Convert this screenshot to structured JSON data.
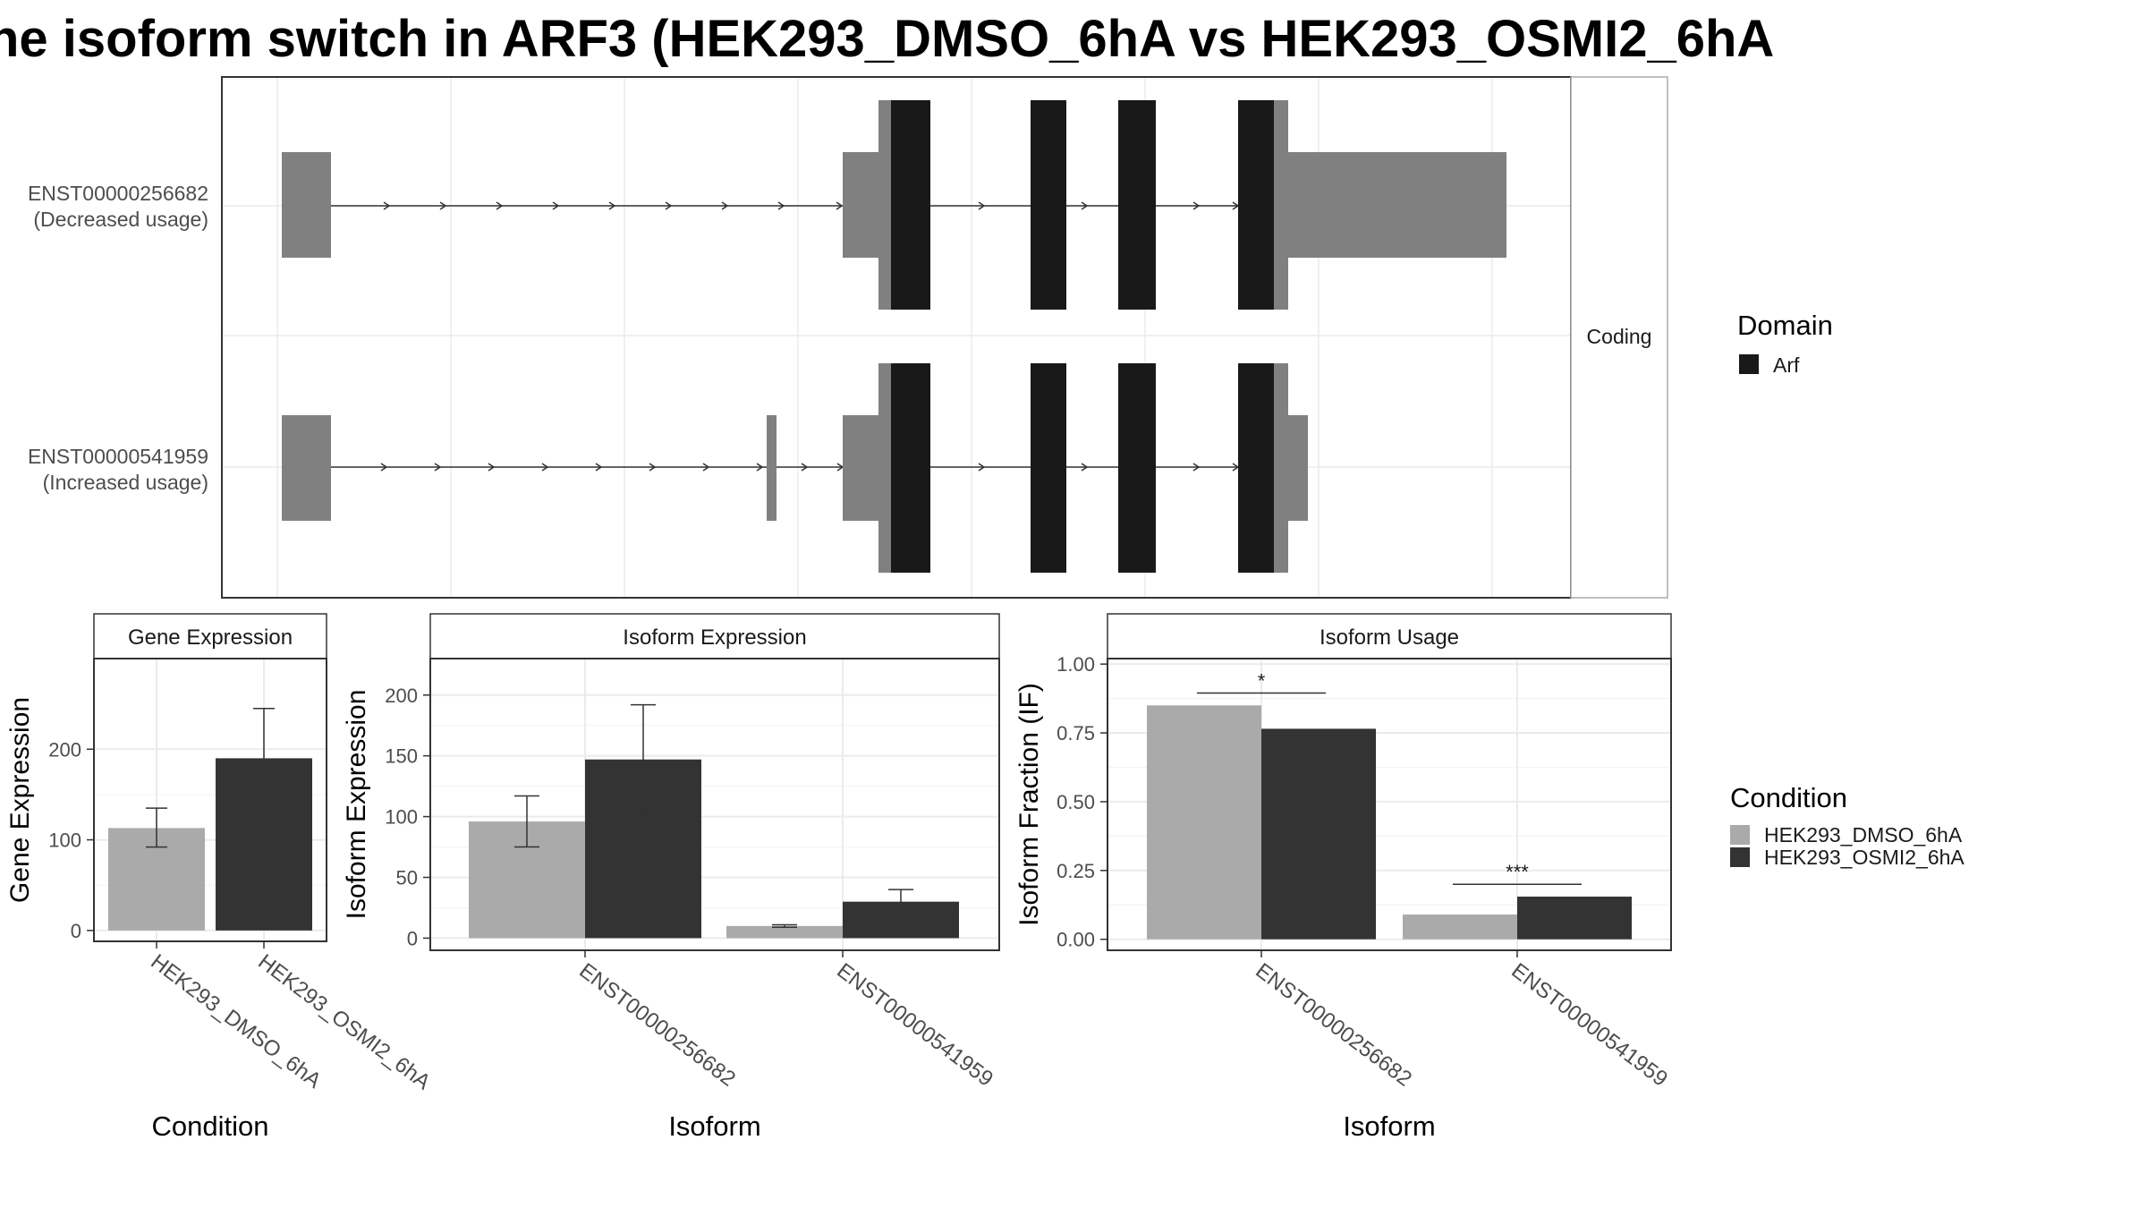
{
  "title": "he isoform switch in ARF3 (HEK293_DMSO_6hA vs HEK293_OSMI2_6hA",
  "colors": {
    "dmso": "#aaaaaa",
    "osmi": "#333333",
    "utr": "#808080",
    "domain": "#191919",
    "grid": "#ebebeb",
    "panel_border": "#333333",
    "strip_border": "#aaaaaa"
  },
  "legends": {
    "domain_title": "Domain",
    "domain_items": [
      "Arf"
    ],
    "condition_title": "Condition",
    "condition_items": [
      "HEK293_DMSO_6hA",
      "HEK293_OSMI2_6hA"
    ]
  },
  "chart_data": [
    {
      "type": "transcript-structure",
      "strip_label": "Coding",
      "transcripts": [
        {
          "id": "ENST00000256682",
          "status": "(Decreased usage)"
        },
        {
          "id": "ENST00000541959",
          "status": "(Increased usage)"
        }
      ],
      "domain": "Arf",
      "grid": true
    },
    {
      "type": "bar",
      "title": "Gene Expression",
      "xlabel": "Condition",
      "ylabel": "Gene Expression",
      "categories": [
        "HEK293_DMSO_6hA",
        "HEK293_OSMI2_6hA"
      ],
      "values": [
        113,
        190
      ],
      "error_low": [
        92,
        135
      ],
      "error_high": [
        135,
        245
      ],
      "yticks": [
        0,
        100,
        200
      ],
      "ylim": [
        -12,
        300
      ],
      "grid": true
    },
    {
      "type": "bar",
      "title": "Isoform Expression",
      "xlabel": "Isoform",
      "ylabel": "Isoform Expression",
      "categories": [
        "ENST00000256682",
        "ENST00000541959"
      ],
      "series": [
        {
          "name": "HEK293_DMSO_6hA",
          "values": [
            96,
            10
          ],
          "error_low": [
            75,
            9
          ],
          "error_high": [
            117,
            11
          ]
        },
        {
          "name": "HEK293_OSMI2_6hA",
          "values": [
            147,
            30
          ],
          "error_low": [
            102,
            20
          ],
          "error_high": [
            192,
            40
          ]
        }
      ],
      "yticks": [
        0,
        50,
        100,
        150,
        200
      ],
      "ylim": [
        -10,
        230
      ],
      "grid": true
    },
    {
      "type": "bar",
      "title": "Isoform Usage",
      "xlabel": "Isoform",
      "ylabel": "Isoform Fraction (IF)",
      "categories": [
        "ENST00000256682",
        "ENST00000541959"
      ],
      "series": [
        {
          "name": "HEK293_DMSO_6hA",
          "values": [
            0.85,
            0.09
          ]
        },
        {
          "name": "HEK293_OSMI2_6hA",
          "values": [
            0.765,
            0.155
          ]
        }
      ],
      "significance": [
        "*",
        "***"
      ],
      "significance_at": [
        0.895,
        0.2
      ],
      "yticks": [
        "0.00",
        "0.25",
        "0.50",
        "0.75",
        "1.00"
      ],
      "ylim": [
        -0.04,
        1.02
      ],
      "grid": true
    }
  ]
}
